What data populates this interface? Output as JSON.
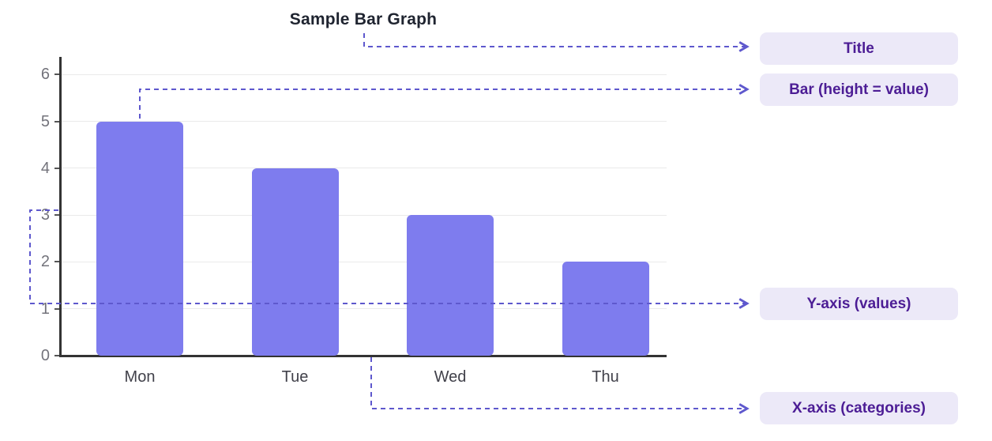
{
  "title": "Sample Bar Graph",
  "chart_data": {
    "type": "bar",
    "categories": [
      "Mon",
      "Tue",
      "Wed",
      "Thu"
    ],
    "values": [
      5,
      4,
      3,
      2
    ],
    "title": "Sample Bar Graph",
    "xlabel": "",
    "ylabel": "",
    "ylim": [
      0,
      6.4
    ],
    "yticks": [
      0,
      1,
      2,
      3,
      4,
      5,
      6
    ],
    "grid": true,
    "legend": "none",
    "bar_color": "#7E7CEE"
  },
  "annotations": {
    "labels": [
      {
        "id": "title",
        "label": "Title"
      },
      {
        "id": "bar",
        "label": "Bar (height = value)"
      },
      {
        "id": "y_axis",
        "label": "Y-axis (values)"
      },
      {
        "id": "x_axis",
        "label": "X-axis (categories)"
      }
    ]
  },
  "colors": {
    "bar": "#7E7CEE",
    "pill_bg": "#ECE9F8",
    "pill_text": "#4C1D95",
    "connector": "#5E58CD",
    "axis": "#333333",
    "axis_tick": "#555555",
    "grid": "#EAEAEA",
    "tick_label": "#73737B",
    "category_label": "#41414A",
    "title_text": "#1F2430"
  }
}
